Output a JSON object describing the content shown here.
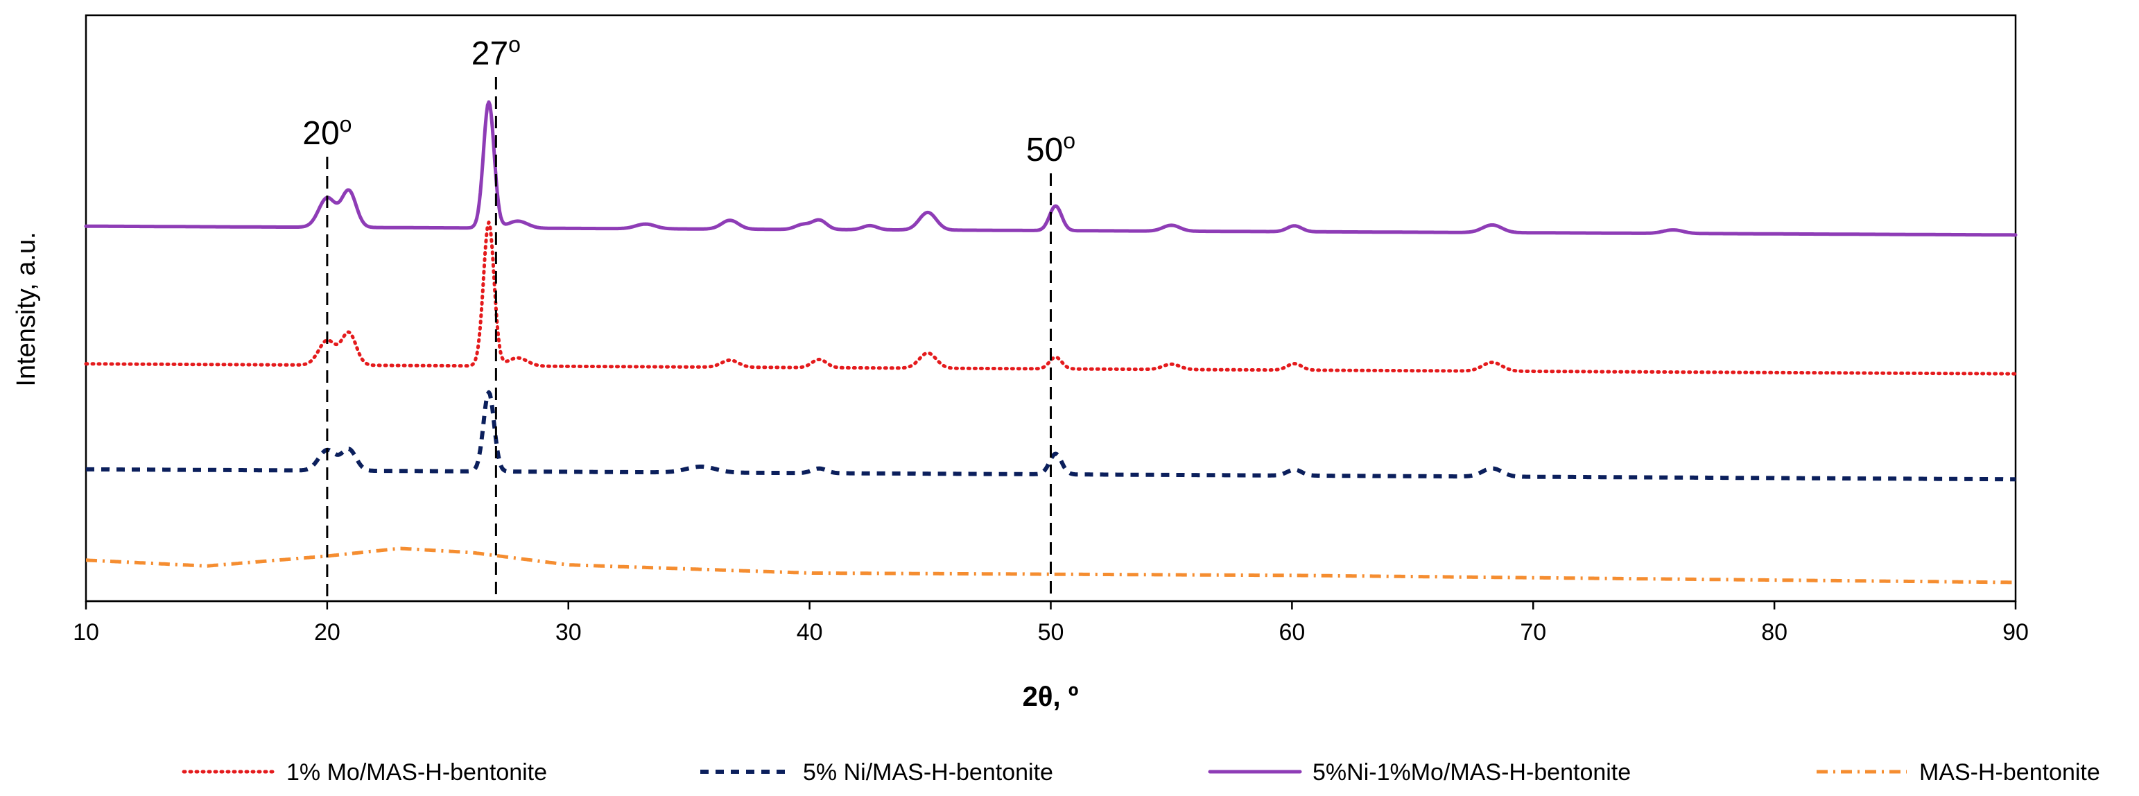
{
  "chart_data": {
    "type": "line",
    "title": "",
    "xlabel": "2θ, º",
    "ylabel": "Intensity, a.u.",
    "xlim": [
      10,
      90
    ],
    "ylim": [
      0,
      100
    ],
    "xticks": [
      10,
      20,
      30,
      40,
      50,
      60,
      70,
      80,
      90
    ],
    "y_ticks_shown": false,
    "grid": false,
    "legend_position": "bottom",
    "annotations": [
      {
        "x": 20,
        "label": "20",
        "superscript": "o",
        "style": "dashed-vertical"
      },
      {
        "x": 27,
        "label": "27",
        "superscript": "o",
        "style": "dashed-vertical"
      },
      {
        "x": 50,
        "label": "50",
        "superscript": "o",
        "style": "dashed-vertical"
      }
    ],
    "series": [
      {
        "name": "1% Mo/MAS-H-bentonite",
        "color": "#e41a1c",
        "style": "dotted",
        "baseline": [
          [
            10,
            40.5
          ],
          [
            90,
            38.8
          ]
        ],
        "peaks": [
          [
            20.0,
            4.2,
            0.35
          ],
          [
            20.9,
            5.5,
            0.3
          ],
          [
            26.7,
            24.5,
            0.22
          ],
          [
            27.9,
            1.4,
            0.4
          ],
          [
            36.7,
            1.2,
            0.35
          ],
          [
            40.4,
            1.4,
            0.3
          ],
          [
            44.9,
            2.6,
            0.35
          ],
          [
            50.2,
            2.0,
            0.25
          ],
          [
            55.0,
            0.9,
            0.35
          ],
          [
            60.1,
            1.1,
            0.3
          ],
          [
            68.3,
            1.5,
            0.4
          ]
        ]
      },
      {
        "name": "5% Ni/MAS-H-bentonite",
        "color": "#0b1f5c",
        "style": "dashed",
        "baseline": [
          [
            10,
            22.5
          ],
          [
            90,
            20.8
          ]
        ],
        "peaks": [
          [
            20.0,
            3.5,
            0.35
          ],
          [
            20.9,
            3.6,
            0.3
          ],
          [
            26.7,
            13.5,
            0.22
          ],
          [
            35.5,
            1.0,
            0.6
          ],
          [
            40.4,
            0.8,
            0.3
          ],
          [
            50.2,
            3.5,
            0.25
          ],
          [
            60.1,
            1.0,
            0.3
          ],
          [
            68.3,
            1.4,
            0.4
          ]
        ]
      },
      {
        "name": "5%Ni-1%Mo/MAS-H-bentonite",
        "color": "#8e3cb6",
        "style": "solid",
        "baseline": [
          [
            10,
            64.0
          ],
          [
            90,
            62.5
          ]
        ],
        "peaks": [
          [
            20.0,
            5.0,
            0.35
          ],
          [
            20.9,
            6.2,
            0.3
          ],
          [
            26.7,
            21.5,
            0.22
          ],
          [
            27.9,
            1.2,
            0.4
          ],
          [
            33.2,
            0.8,
            0.4
          ],
          [
            36.7,
            1.5,
            0.35
          ],
          [
            39.7,
            0.8,
            0.3
          ],
          [
            40.4,
            1.6,
            0.3
          ],
          [
            42.5,
            0.7,
            0.3
          ],
          [
            44.9,
            3.0,
            0.35
          ],
          [
            50.2,
            4.2,
            0.25
          ],
          [
            55.0,
            1.0,
            0.35
          ],
          [
            60.1,
            1.0,
            0.3
          ],
          [
            68.3,
            1.3,
            0.4
          ],
          [
            75.8,
            0.6,
            0.4
          ]
        ]
      },
      {
        "name": "MAS-H-bentonite",
        "color": "#f58d30",
        "style": "dashdot",
        "baseline": [
          [
            10,
            7.0
          ],
          [
            15,
            6.0
          ],
          [
            20,
            7.7
          ],
          [
            23,
            9.0
          ],
          [
            26,
            8.3
          ],
          [
            30,
            6.2
          ],
          [
            40,
            4.8
          ],
          [
            60,
            4.4
          ],
          [
            90,
            3.2
          ]
        ],
        "peaks": []
      }
    ]
  }
}
